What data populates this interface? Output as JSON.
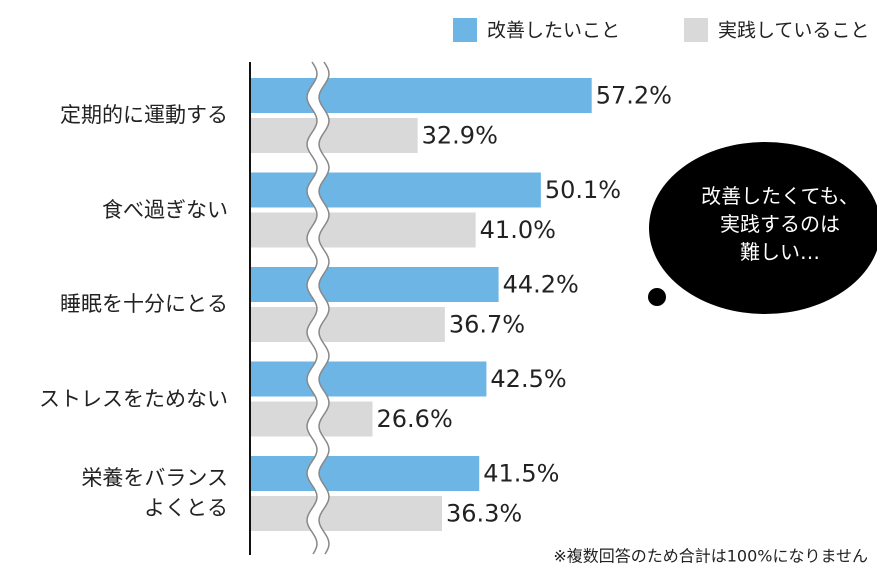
{
  "chart_data": {
    "type": "bar",
    "orientation": "horizontal",
    "categories": [
      "定期的に運動する",
      "食べ過ぎない",
      "睡眠を十分にとる",
      "ストレスをためない",
      "栄養をバランス\nよくとる"
    ],
    "series": [
      {
        "name": "改善したいこと",
        "color": "#6cb5e5",
        "values": [
          57.2,
          50.1,
          44.2,
          42.5,
          41.5
        ],
        "value_labels": [
          "57.2%",
          "50.1%",
          "44.2%",
          "42.5%",
          "41.5%"
        ]
      },
      {
        "name": "実践していること",
        "color": "#d9d9d9",
        "values": [
          32.9,
          41.0,
          36.7,
          26.6,
          36.3
        ],
        "value_labels": [
          "32.9%",
          "41.0%",
          "36.7%",
          "26.6%",
          "36.3%"
        ]
      }
    ],
    "xlim": [
      0,
      80
    ],
    "axis_break": true,
    "legend": "top-right",
    "annotation": "改善したくても、\n実践するのは\n難しい…",
    "note": "※複数回答のため合計は100%になりません"
  }
}
